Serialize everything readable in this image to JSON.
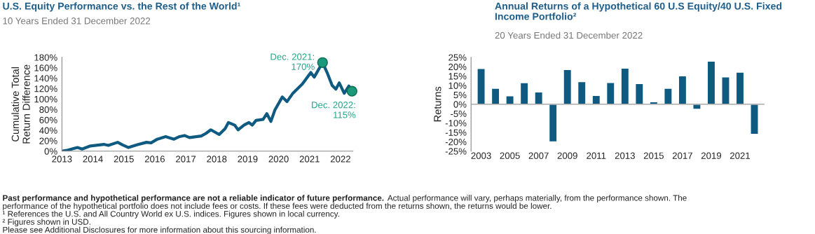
{
  "chart_data": [
    {
      "type": "line",
      "title": "U.S. Equity Performance vs. the Rest of the World¹",
      "subtitle": "10 Years Ended 31 December 2022",
      "ylabel": "Cumulative Total\nReturn Difference",
      "xlim": [
        2013,
        2022.4
      ],
      "xticks": [
        2013,
        2014,
        2015,
        2016,
        2017,
        2018,
        2019,
        2020,
        2021,
        2022
      ],
      "ylim": [
        0,
        180
      ],
      "yticks": [
        {
          "value": 0,
          "label": "0%"
        },
        {
          "value": 20,
          "label": "20%"
        },
        {
          "value": 40,
          "label": "40%"
        },
        {
          "value": 60,
          "label": "60%"
        },
        {
          "value": 80,
          "label": "80%"
        },
        {
          "value": 100,
          "label": "100%"
        },
        {
          "value": 120,
          "label": "120%"
        },
        {
          "value": 140,
          "label": "140%"
        },
        {
          "value": 160,
          "label": "160%"
        },
        {
          "value": 180,
          "label": "180%"
        }
      ],
      "series": [
        {
          "color": "#0f5a80",
          "x": [
            2013,
            2013.19,
            2013.5,
            2013.65,
            2013.92,
            2014.35,
            2014.5,
            2014.8,
            2014.96,
            2015.15,
            2015.42,
            2015.73,
            2015.88,
            2016.08,
            2016.35,
            2016.62,
            2016.8,
            2016.96,
            2017.12,
            2017.5,
            2017.65,
            2017.81,
            2018.08,
            2018.27,
            2018.38,
            2018.58,
            2018.69,
            2018.88,
            2019.04,
            2019.15,
            2019.27,
            2019.5,
            2019.62,
            2019.75,
            2019.88,
            2020.12,
            2020.27,
            2020.46,
            2020.77,
            2021.04,
            2021.15,
            2021.42,
            2021.58,
            2021.73,
            2021.85,
            2021.96,
            2022.12,
            2022.27,
            2022.37
          ],
          "values": [
            0,
            2,
            7,
            4,
            10,
            13,
            11,
            17,
            12,
            7,
            12,
            17,
            16,
            23,
            28,
            23,
            28,
            30,
            26,
            29,
            34,
            41,
            32,
            43,
            55,
            50,
            41,
            50,
            55,
            50,
            59,
            61,
            72,
            57,
            79,
            104,
            95,
            111,
            129,
            151,
            142,
            170,
            149,
            126,
            119,
            131,
            111,
            125,
            115
          ]
        }
      ],
      "annotations": [
        {
          "text": "Dec. 2021:\n170%",
          "x": 2021.42,
          "y": 170
        },
        {
          "text": "Dec. 2022:\n115%",
          "x": 2022.37,
          "y": 115
        }
      ]
    },
    {
      "type": "bar",
      "title": "Annual Returns of a Hypothetical 60 U.S Equity/40 U.S. Fixed\nIncome Portfolio²",
      "subtitle": "20 Years Ended 31 December 2022",
      "ylabel": "Returns",
      "categories": [
        "2003",
        null,
        "2005",
        null,
        "2007",
        null,
        "2009",
        null,
        "2011",
        null,
        "2013",
        null,
        "2015",
        null,
        "2017",
        null,
        "2019",
        null,
        "2021",
        null
      ],
      "values": [
        19,
        8.5,
        4.5,
        11.5,
        6.5,
        -20,
        18.5,
        12,
        4.7,
        11.6,
        19.2,
        11,
        1.3,
        8.5,
        15.1,
        -2.7,
        23,
        14.6,
        17.1,
        -16
      ],
      "color": "#0f5a80",
      "ylim": [
        -25,
        25
      ],
      "yticks": [
        {
          "value": 25,
          "label": "25%"
        },
        {
          "value": 20,
          "label": "20%"
        },
        {
          "value": 15,
          "label": "15%"
        },
        {
          "value": 10,
          "label": "10%"
        },
        {
          "value": 5,
          "label": "5%"
        },
        {
          "value": 0,
          "label": "0%"
        },
        {
          "value": -5,
          "label": "-5%"
        },
        {
          "value": -10,
          "label": "-10%"
        },
        {
          "value": -15,
          "label": "-15%"
        },
        {
          "value": -20,
          "label": "-20%"
        },
        {
          "value": -25,
          "label": "-25%"
        }
      ],
      "annotations": [
        "Past performance and hypothetical performance are not a reliable indicator of future performance.",
        "Actual performance will vary, perhaps materially, from the performance shown. The",
        "performance of the hypothetical portfolio does not include fees or costs. If these fees were deducted from the returns shown, the returns would be lower.",
        "¹ References the U.S. and All Country World ex U.S. indices. Figures shown in local currency.",
        "² Figures shown in USD.",
        "Please see Additional Disclosures for more information about this sourcing information."
      ]
    }
  ]
}
